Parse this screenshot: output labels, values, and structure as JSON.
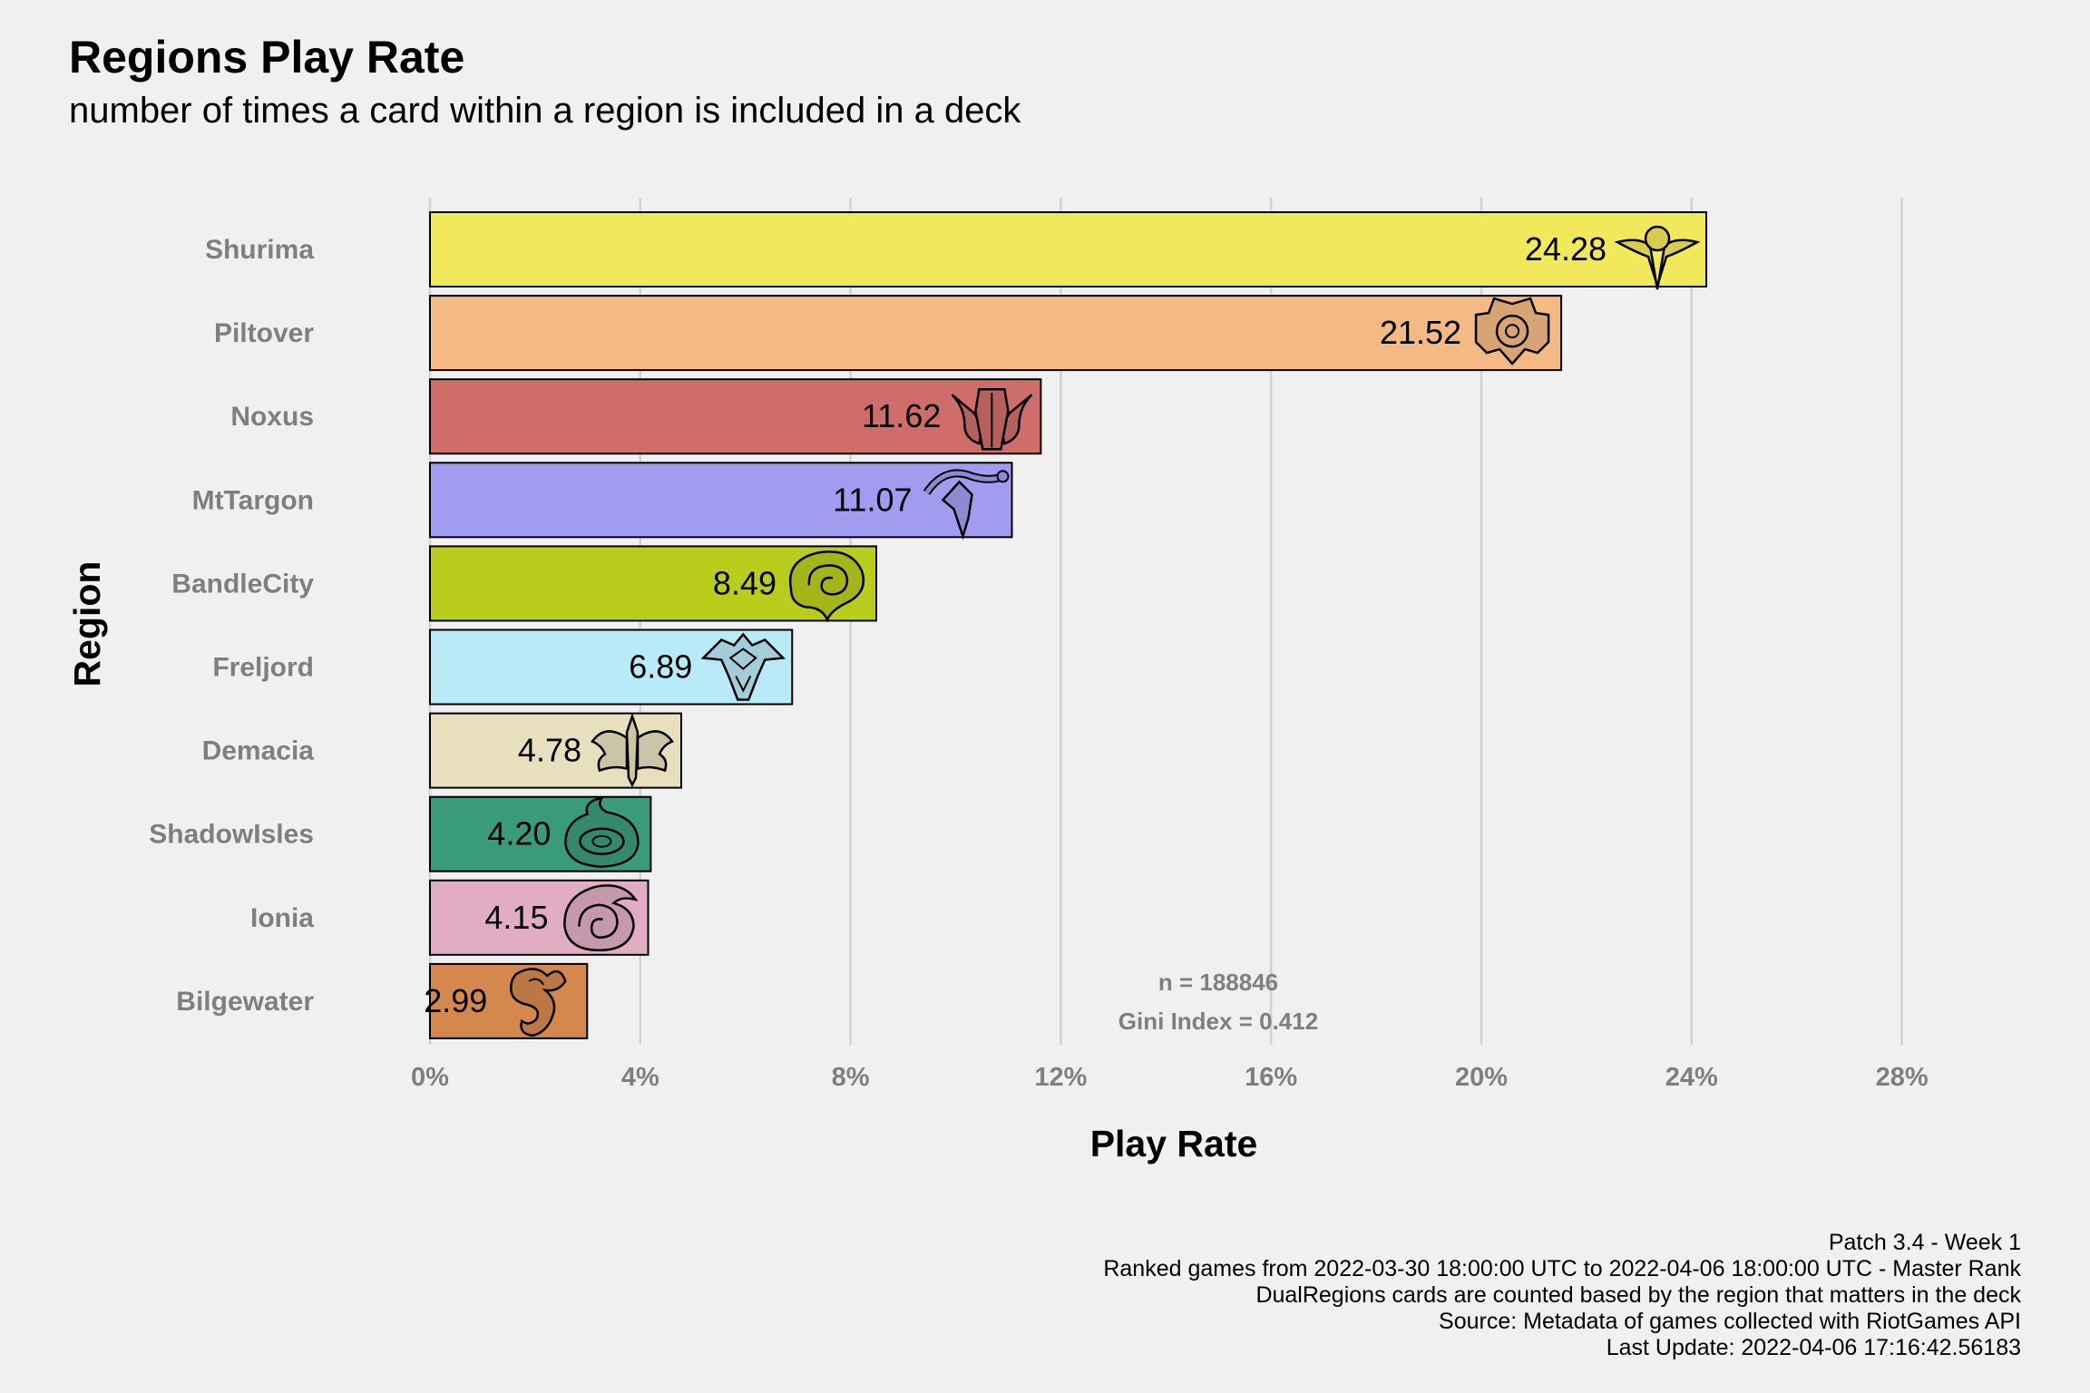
{
  "title": "Regions Play Rate",
  "subtitle": "number of times a card within a region is included in a deck",
  "chart_data": {
    "type": "bar",
    "orientation": "horizontal",
    "title": "Regions Play Rate",
    "subtitle": "number of times a card within a region is included in a deck",
    "xlabel": "Play Rate",
    "ylabel": "Region",
    "xlim": [
      0,
      28
    ],
    "x_ticks": [
      0,
      4,
      8,
      12,
      16,
      20,
      24,
      28
    ],
    "x_tick_labels": [
      "0%",
      "4%",
      "8%",
      "12%",
      "16%",
      "20%",
      "24%",
      "28%"
    ],
    "grid": "vertical major",
    "categories": [
      "Shurima",
      "Piltover",
      "Noxus",
      "MtTargon",
      "BandleCity",
      "Freljord",
      "Demacia",
      "ShadowIsles",
      "Ionia",
      "Bilgewater"
    ],
    "values": [
      24.28,
      21.52,
      11.62,
      11.07,
      8.49,
      6.89,
      4.78,
      4.2,
      4.15,
      2.99
    ],
    "value_labels": [
      "24.28",
      "21.52",
      "11.62",
      "11.07",
      "8.49",
      "6.89",
      "4.78",
      "4.20",
      "4.15",
      "2.99"
    ],
    "colors": [
      "#f2e85b",
      "#f5b985",
      "#cf6d6b",
      "#a29cf0",
      "#bacc1c",
      "#b9eaf7",
      "#e8dfbe",
      "#3a9a7c",
      "#e0adc4",
      "#d4884e"
    ],
    "icons": [
      "shurima-emblem-icon",
      "piltover-emblem-icon",
      "noxus-emblem-icon",
      "mttargon-emblem-icon",
      "bandlecity-emblem-icon",
      "freljord-emblem-icon",
      "demacia-emblem-icon",
      "shadowisles-emblem-icon",
      "ionia-emblem-icon",
      "bilgewater-emblem-icon"
    ],
    "annotations": [
      "n = 188846",
      "Gini Index = 0.412"
    ]
  },
  "captions": [
    "Patch 3.4 - Week 1",
    "Ranked games from 2022-03-30 18:00:00 UTC to 2022-04-06 18:00:00 UTC - Master Rank",
    "DualRegions cards are counted based by the region that matters in the deck",
    "Source: Metadata of games collected with RiotGames API",
    "Last Update: 2022-04-06 17:16:42.56183"
  ]
}
